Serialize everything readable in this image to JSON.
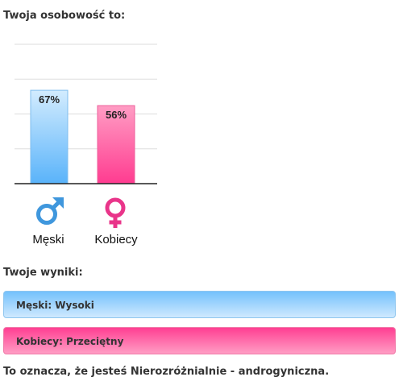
{
  "title": "Twoja osobowość to:",
  "chart_data": {
    "type": "bar",
    "categories": [
      "Męski",
      "Kobiecy"
    ],
    "values": [
      67,
      56
    ],
    "value_labels": [
      "67%",
      "56%"
    ],
    "ylim": [
      0,
      100
    ],
    "grid": true,
    "colors": [
      "#5eb6fa",
      "#ff4f99"
    ],
    "icons": [
      "male-symbol-icon",
      "female-symbol-icon"
    ]
  },
  "results": {
    "heading": "Twoje wyniki:",
    "male": "Męski: Wysoki",
    "female": "Kobiecy: Przeciętny"
  },
  "conclusion": "To oznacza, że jesteś Nierozróżnialnie - androgyniczna."
}
